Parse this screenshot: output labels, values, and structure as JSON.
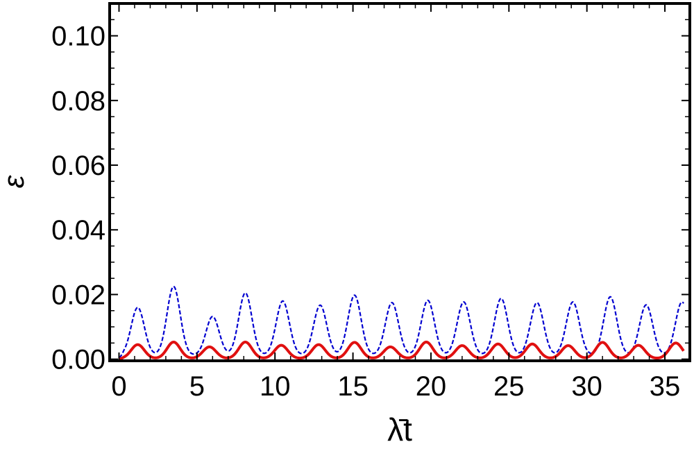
{
  "chart_data": {
    "type": "line",
    "title": "",
    "xlabel": "λ̄t",
    "ylabel": "ε",
    "xlim": [
      -0.6,
      36.6
    ],
    "ylim": [
      -0.0005,
      0.11
    ],
    "x_ticks": [
      0,
      5,
      10,
      15,
      20,
      25,
      30,
      35
    ],
    "x_tick_labels": [
      "0",
      "5",
      "10",
      "15",
      "20",
      "25",
      "30",
      "35"
    ],
    "y_ticks": [
      0.0,
      0.02,
      0.04,
      0.06,
      0.08,
      0.1
    ],
    "y_tick_labels": [
      "0.00",
      "0.02",
      "0.04",
      "0.06",
      "0.08",
      "0.10"
    ],
    "grid": false,
    "legend": "none",
    "series": [
      {
        "color": "#0000d0",
        "style": "dashed",
        "peaks": [
          {
            "x": 1.2,
            "y": 0.016
          },
          {
            "x": 3.5,
            "y": 0.0225
          },
          {
            "x": 6.0,
            "y": 0.0132
          },
          {
            "x": 8.1,
            "y": 0.0205
          },
          {
            "x": 10.5,
            "y": 0.018
          },
          {
            "x": 12.9,
            "y": 0.0167
          },
          {
            "x": 15.1,
            "y": 0.0198
          },
          {
            "x": 17.5,
            "y": 0.0175
          },
          {
            "x": 19.8,
            "y": 0.0182
          },
          {
            "x": 22.1,
            "y": 0.0177
          },
          {
            "x": 24.5,
            "y": 0.0188
          },
          {
            "x": 26.8,
            "y": 0.0175
          },
          {
            "x": 29.1,
            "y": 0.0177
          },
          {
            "x": 31.5,
            "y": 0.0193
          },
          {
            "x": 33.8,
            "y": 0.0168
          },
          {
            "x": 36.1,
            "y": 0.0177
          }
        ],
        "baseline": 0.0012
      },
      {
        "color": "#e01010",
        "style": "solid",
        "peaks": [
          {
            "x": 1.2,
            "y": 0.0045
          },
          {
            "x": 3.5,
            "y": 0.0053
          },
          {
            "x": 5.8,
            "y": 0.0038
          },
          {
            "x": 8.1,
            "y": 0.0053
          },
          {
            "x": 10.4,
            "y": 0.0043
          },
          {
            "x": 12.8,
            "y": 0.0045
          },
          {
            "x": 15.1,
            "y": 0.0052
          },
          {
            "x": 17.4,
            "y": 0.0038
          },
          {
            "x": 19.7,
            "y": 0.0053
          },
          {
            "x": 22.0,
            "y": 0.0042
          },
          {
            "x": 24.3,
            "y": 0.0047
          },
          {
            "x": 26.5,
            "y": 0.0047
          },
          {
            "x": 28.8,
            "y": 0.0042
          },
          {
            "x": 31.0,
            "y": 0.0052
          },
          {
            "x": 33.3,
            "y": 0.0043
          },
          {
            "x": 35.7,
            "y": 0.005
          }
        ],
        "baseline": 0.0002
      }
    ]
  }
}
